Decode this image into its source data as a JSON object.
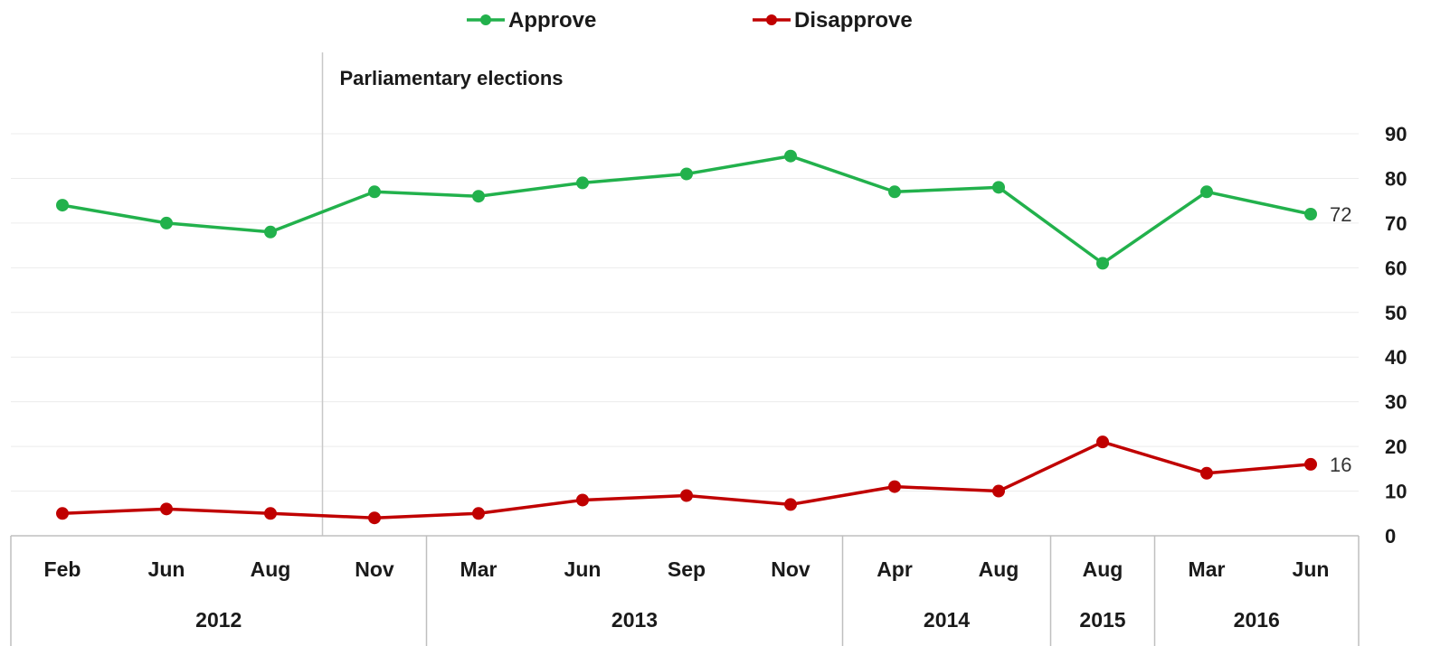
{
  "chart_data": {
    "type": "line",
    "title": "",
    "xlabel": "",
    "ylabel": "",
    "ylim": [
      0,
      90
    ],
    "yticks": [
      0,
      10,
      20,
      30,
      40,
      50,
      60,
      70,
      80,
      90
    ],
    "grid": true,
    "legend_position": "top-center",
    "categories": [
      "Feb",
      "Jun",
      "Aug",
      "Nov",
      "Mar",
      "Jun",
      "Sep",
      "Nov",
      "Apr",
      "Aug",
      "Aug",
      "Mar",
      "Jun"
    ],
    "year_groups": [
      {
        "label": "2012",
        "count": 4
      },
      {
        "label": "2013",
        "count": 4
      },
      {
        "label": "2014",
        "count": 2
      },
      {
        "label": "2015",
        "count": 1
      },
      {
        "label": "2016",
        "count": 2
      }
    ],
    "series": [
      {
        "name": "Approve",
        "color": "#22b14c",
        "values": [
          74,
          70,
          68,
          77,
          76,
          79,
          81,
          85,
          77,
          78,
          61,
          77,
          72
        ],
        "end_label": "72"
      },
      {
        "name": "Disapprove",
        "color": "#c00000",
        "values": [
          5,
          6,
          5,
          4,
          5,
          8,
          9,
          7,
          11,
          10,
          21,
          14,
          16
        ],
        "end_label": "16"
      }
    ],
    "annotation": {
      "label": "Parliamentary elections",
      "after_index": 2
    }
  }
}
